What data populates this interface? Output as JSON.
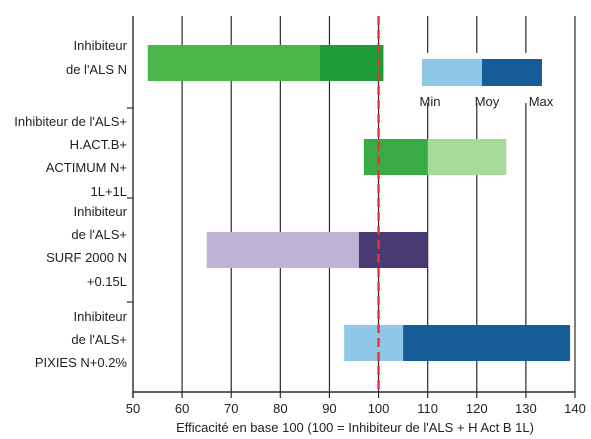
{
  "chart_data": {
    "type": "bar",
    "subtype": "floating-range",
    "xlabel": "Efficacité en base 100 (100 = Inhibiteur de l'ALS + H Act B 1L)",
    "xlim": [
      50,
      140
    ],
    "xticks": [
      50,
      60,
      70,
      80,
      90,
      100,
      110,
      120,
      130,
      140
    ],
    "grid": "vertical",
    "reference_line": {
      "value": 100,
      "style": "dashed",
      "color": "#e8303f"
    },
    "legend": {
      "placement": "top-right",
      "labels": [
        "Min",
        "Moy",
        "Max"
      ]
    },
    "categories": [
      {
        "lines": [
          "Inhibiteur",
          "de l'ALS N"
        ]
      },
      {
        "lines": [
          "Inhibiteur de l'ALS+",
          "H.ACT.B+",
          "ACTIMUM N+",
          "1L+1L"
        ]
      },
      {
        "lines": [
          "Inhibiteur",
          "de l'ALS+",
          "SURF 2000 N",
          "+0.15L"
        ]
      },
      {
        "lines": [
          "Inhibiteur",
          "de l'ALS+",
          "PIXIES N+0.2%"
        ]
      }
    ],
    "series": [
      {
        "min": 53,
        "moy": 88,
        "max": 101,
        "colors": [
          "#4ab64a",
          "#1e9c3a"
        ]
      },
      {
        "min": 97,
        "moy": 110,
        "max": 126,
        "colors": [
          "#3aaa44",
          "#a6dc9a"
        ]
      },
      {
        "min": 65,
        "moy": 96,
        "max": 110,
        "colors": [
          "#c0b4d6",
          "#4a3a74"
        ]
      },
      {
        "min": 93,
        "moy": 105,
        "max": 139,
        "colors": [
          "#8ec8e6",
          "#165c98"
        ]
      }
    ],
    "legend_colors": [
      "#8ec8e6",
      "#165c98"
    ]
  }
}
